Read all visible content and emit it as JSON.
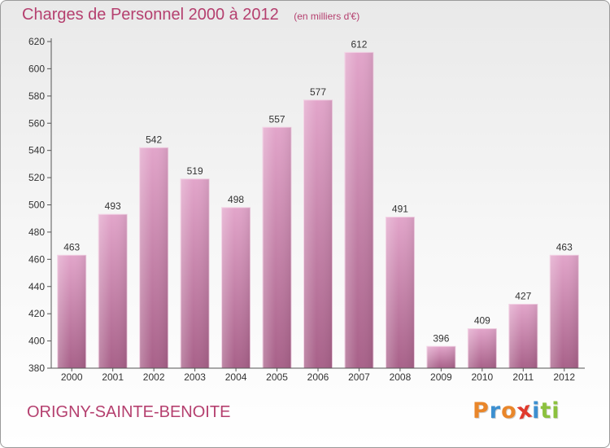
{
  "header": {
    "title": "Charges de Personnel 2000 à 2012",
    "unit": "(en milliers d'€)"
  },
  "footer": {
    "commune": "ORIGNY-SAINTE-BENOITE",
    "brand": "Proxiti"
  },
  "brand_letters": [
    {
      "ch": "P",
      "color": "#e9862a"
    },
    {
      "ch": "r",
      "color": "#3c8fd0"
    },
    {
      "ch": "o",
      "color": "#e9862a"
    },
    {
      "ch": "x",
      "color": "#e03a2d"
    },
    {
      "ch": "i",
      "color": "#3c8fd0"
    },
    {
      "ch": "t",
      "color": "#8cc13e"
    },
    {
      "ch": "i",
      "color": "#8cc13e"
    }
  ],
  "colors": {
    "title": "#b5406f",
    "bar_top": "#e2a5ca",
    "bar_bottom": "#a86189",
    "bar_edge": "#f2cfe3",
    "axis": "#555555",
    "text": "#333333"
  },
  "chart_data": {
    "type": "bar",
    "title": "Charges de Personnel 2000 à 2012",
    "subtitle": "(en milliers d'€)",
    "categories": [
      "2000",
      "2001",
      "2002",
      "2003",
      "2004",
      "2005",
      "2006",
      "2007",
      "2008",
      "2009",
      "2010",
      "2011",
      "2012"
    ],
    "values": [
      463,
      493,
      542,
      519,
      498,
      557,
      577,
      612,
      491,
      396,
      409,
      427,
      463
    ],
    "ylim": [
      380,
      620
    ],
    "yticks": [
      380,
      400,
      420,
      440,
      460,
      480,
      500,
      520,
      540,
      560,
      580,
      600,
      620
    ],
    "grid": false,
    "data_labels": true,
    "xlabel": "",
    "ylabel": ""
  }
}
